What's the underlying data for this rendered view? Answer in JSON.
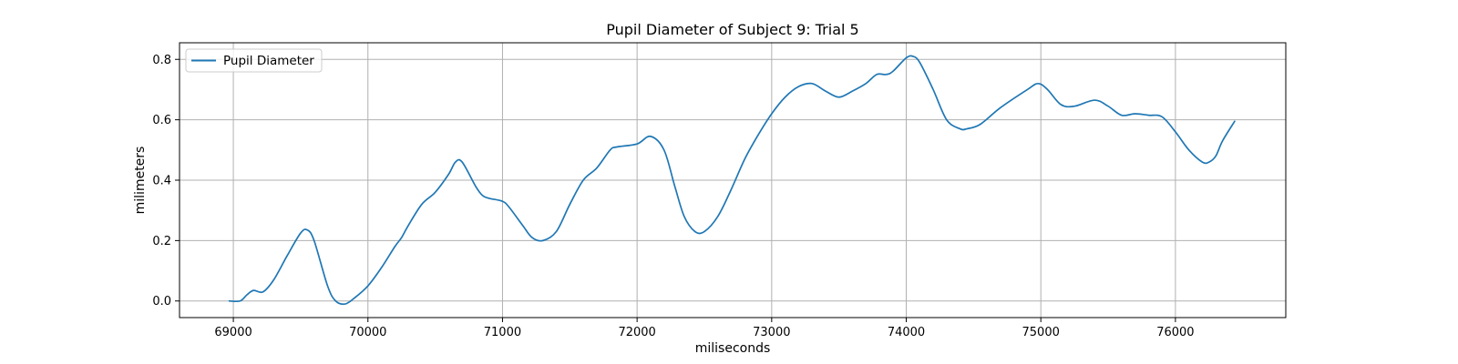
{
  "chart_data": {
    "type": "line",
    "title": "Pupil Diameter of Subject 9: Trial 5",
    "xlabel": "miliseconds",
    "ylabel": "milimeters",
    "xlim": [
      68600,
      76820
    ],
    "ylim": [
      -0.055,
      0.855
    ],
    "xticks": [
      69000,
      70000,
      71000,
      72000,
      73000,
      74000,
      75000,
      76000
    ],
    "xtick_labels": [
      "69000",
      "70000",
      "71000",
      "72000",
      "73000",
      "74000",
      "75000",
      "76000"
    ],
    "yticks": [
      0.0,
      0.2,
      0.4,
      0.6,
      0.8
    ],
    "ytick_labels": [
      "0.0",
      "0.2",
      "0.4",
      "0.6",
      "0.8"
    ],
    "grid": true,
    "legend_position": "upper-left",
    "color": "#1f77b4",
    "series": [
      {
        "name": "Pupil Diameter",
        "x": [
          68970,
          69050,
          69100,
          69150,
          69220,
          69300,
          69400,
          69500,
          69550,
          69600,
          69700,
          69760,
          69830,
          69900,
          70000,
          70100,
          70200,
          70250,
          70300,
          70400,
          70500,
          70600,
          70650,
          70700,
          70800,
          70850,
          70900,
          71000,
          71050,
          71150,
          71220,
          71300,
          71400,
          71500,
          71600,
          71700,
          71800,
          71850,
          72000,
          72100,
          72200,
          72280,
          72350,
          72430,
          72500,
          72600,
          72700,
          72800,
          72900,
          73000,
          73100,
          73200,
          73300,
          73400,
          73500,
          73600,
          73700,
          73780,
          73850,
          73900,
          74000,
          74050,
          74100,
          74200,
          74300,
          74400,
          74450,
          74550,
          74700,
          74900,
          74980,
          75050,
          75150,
          75250,
          75400,
          75500,
          75600,
          75700,
          75800,
          75900,
          76000,
          76100,
          76200,
          76250,
          76300,
          76350,
          76440
        ],
        "y": [
          0.0,
          0.0,
          0.02,
          0.035,
          0.03,
          0.07,
          0.15,
          0.225,
          0.235,
          0.2,
          0.05,
          0.0,
          -0.01,
          0.01,
          0.05,
          0.11,
          0.18,
          0.21,
          0.25,
          0.32,
          0.36,
          0.42,
          0.46,
          0.46,
          0.38,
          0.35,
          0.34,
          0.33,
          0.31,
          0.25,
          0.21,
          0.2,
          0.23,
          0.32,
          0.4,
          0.44,
          0.5,
          0.51,
          0.52,
          0.545,
          0.5,
          0.38,
          0.28,
          0.23,
          0.23,
          0.28,
          0.37,
          0.47,
          0.55,
          0.62,
          0.675,
          0.71,
          0.72,
          0.695,
          0.675,
          0.695,
          0.72,
          0.75,
          0.75,
          0.76,
          0.805,
          0.81,
          0.79,
          0.7,
          0.6,
          0.57,
          0.57,
          0.585,
          0.64,
          0.7,
          0.72,
          0.7,
          0.65,
          0.645,
          0.665,
          0.645,
          0.615,
          0.62,
          0.615,
          0.61,
          0.56,
          0.5,
          0.46,
          0.46,
          0.48,
          0.53,
          0.595
        ]
      }
    ]
  }
}
